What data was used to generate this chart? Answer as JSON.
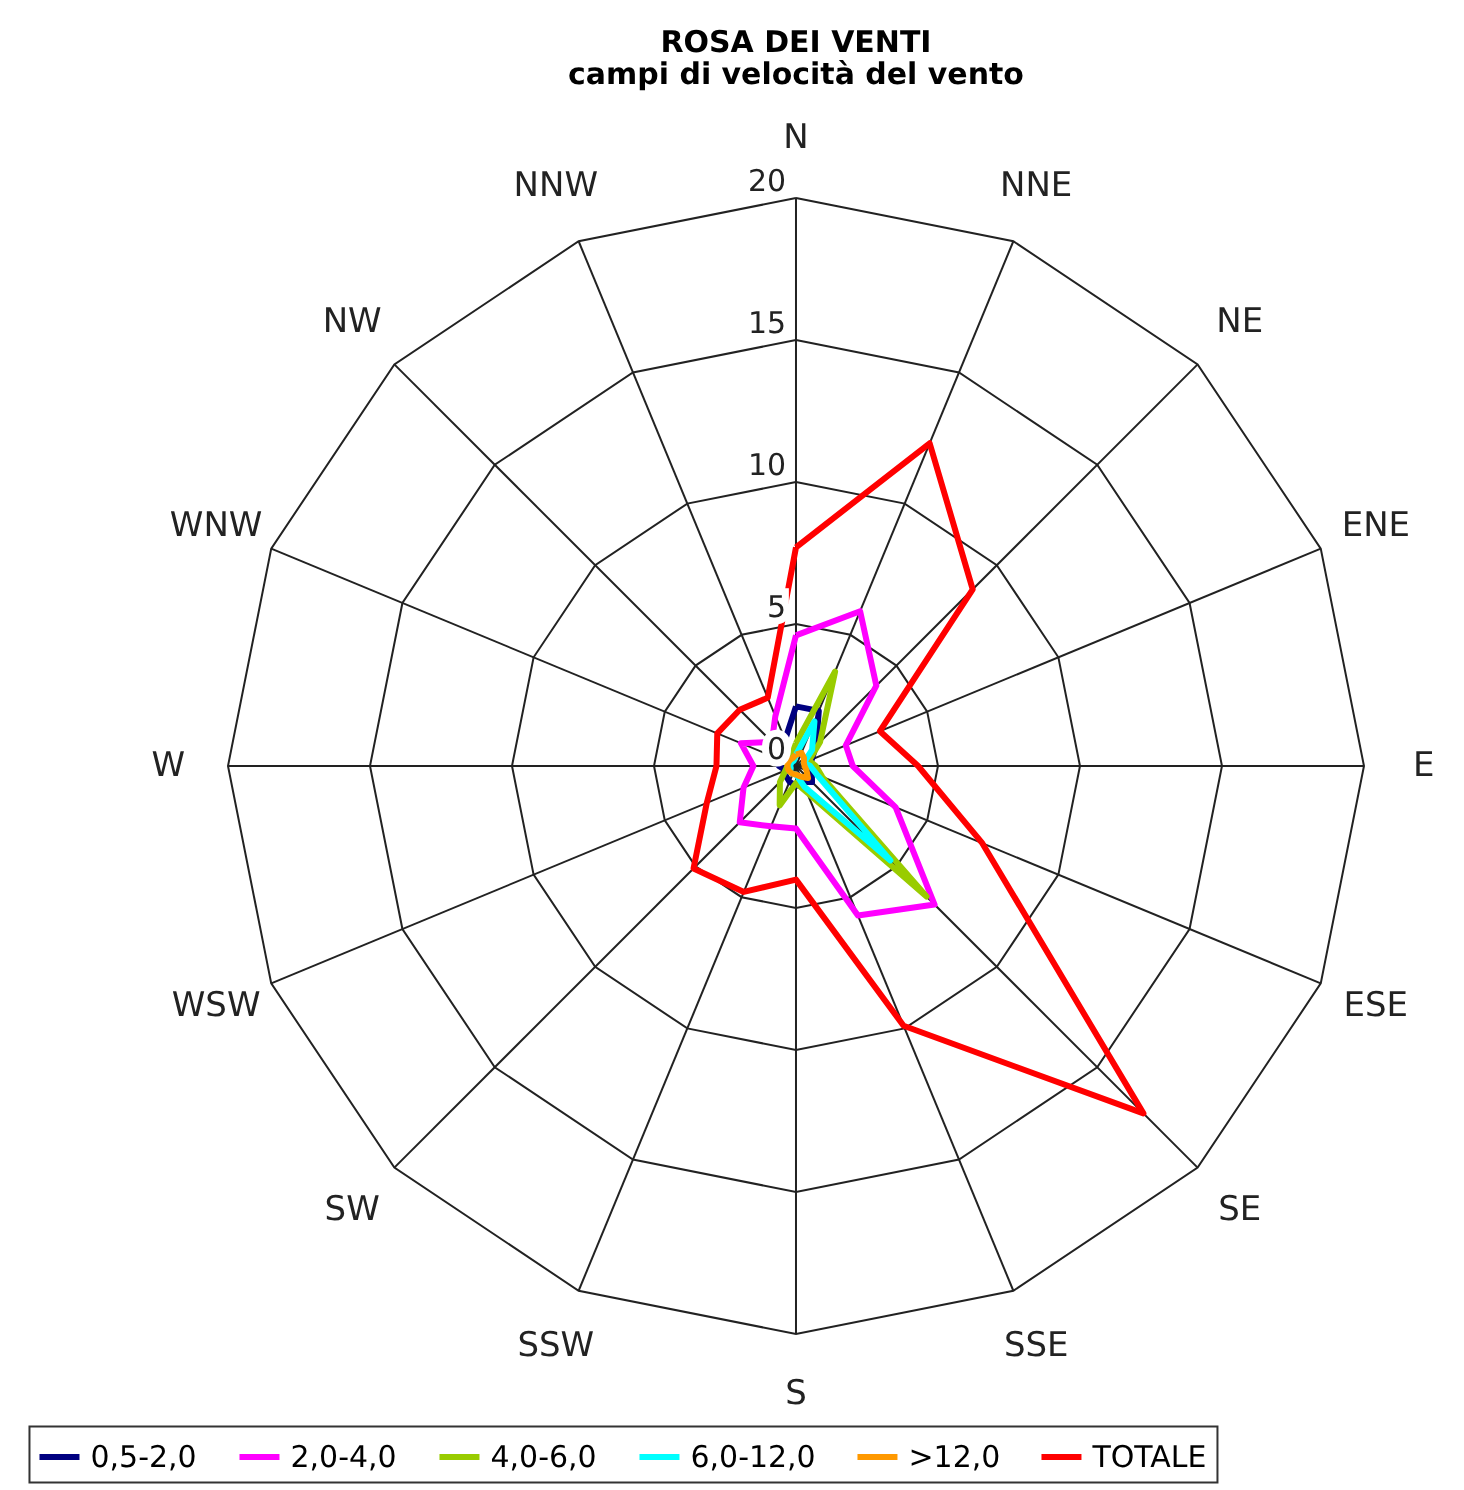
{
  "chart_data": {
    "type": "radar",
    "title": "ROSA DEI VENTI",
    "subtitle": "campi di velocità del vento",
    "categories": [
      "N",
      "NNE",
      "NE",
      "ENE",
      "E",
      "ESE",
      "SE",
      "SSE",
      "S",
      "SSW",
      "SW",
      "WSW",
      "W",
      "WNW",
      "NW",
      "NNW"
    ],
    "ylim": [
      0,
      20
    ],
    "yticks": [
      0,
      5,
      10,
      15,
      20
    ],
    "grid": true,
    "legend": "bottom",
    "series": [
      {
        "name": "0,5-2,0",
        "color": "#000080",
        "values": [
          2.1,
          2.1,
          1.0,
          0.6,
          0.5,
          0.6,
          0.8,
          0.6,
          0.7,
          0.6,
          0.5,
          0.4,
          0.6,
          0.8,
          1.0,
          1.0
        ]
      },
      {
        "name": "2,0-4,0",
        "color": "#ff00ff",
        "values": [
          4.6,
          5.9,
          4.0,
          1.9,
          2.0,
          3.8,
          6.9,
          5.7,
          2.2,
          2.3,
          2.8,
          2.0,
          1.5,
          2.1,
          1.2,
          1.9
        ]
      },
      {
        "name": "4,0-6,0",
        "color": "#99cc00",
        "values": [
          0.8,
          3.6,
          1.2,
          0.5,
          0.7,
          1.0,
          6.5,
          1.0,
          0.6,
          1.5,
          0.8,
          0.4,
          0.3,
          0.3,
          0.3,
          0.4
        ]
      },
      {
        "name": "6,0-12,0",
        "color": "#00ffff",
        "values": [
          0.4,
          1.7,
          0.8,
          0.3,
          0.5,
          0.8,
          4.7,
          0.8,
          0.3,
          0.3,
          0.3,
          0.2,
          0.2,
          0.2,
          0.2,
          0.2
        ]
      },
      {
        "name": ">12,0",
        "color": "#ff9900",
        "values": [
          0.4,
          0.5,
          0.4,
          0.3,
          0.3,
          0.4,
          0.6,
          0.4,
          0.3,
          0.3,
          0.3,
          0.3,
          0.3,
          0.3,
          0.3,
          0.3
        ]
      },
      {
        "name": "TOTALE",
        "color": "#ff0000",
        "values": [
          7.7,
          12.3,
          8.8,
          3.2,
          4.3,
          7.1,
          17.3,
          9.9,
          4.0,
          4.8,
          5.1,
          3.4,
          2.8,
          3.0,
          2.8,
          2.6
        ]
      }
    ]
  }
}
